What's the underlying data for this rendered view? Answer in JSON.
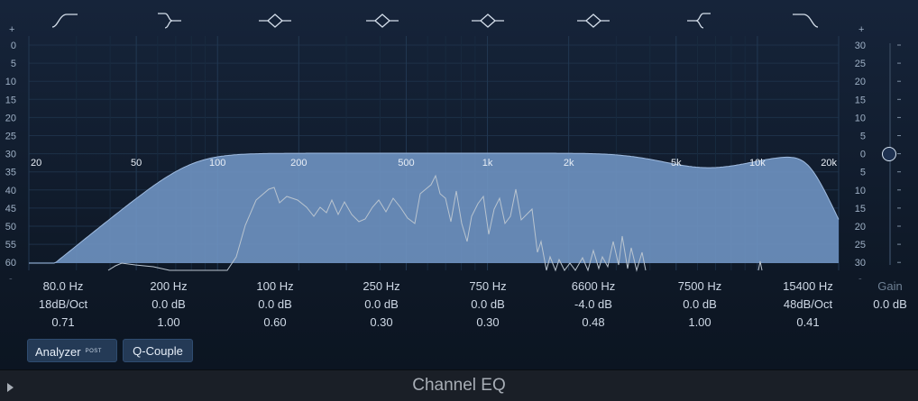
{
  "window": {
    "title": "Channel EQ"
  },
  "scale": {
    "left_top_marker": "+",
    "left_bottom_marker": "-",
    "left_labels": [
      "0",
      "5",
      "10",
      "15",
      "20",
      "25",
      "30",
      "35",
      "40",
      "45",
      "50",
      "55",
      "60"
    ],
    "right_top_marker": "+",
    "right_bottom_marker": "-",
    "right_labels": [
      "30",
      "25",
      "20",
      "15",
      "10",
      "5",
      "0",
      "5",
      "10",
      "15",
      "20",
      "25",
      "30"
    ]
  },
  "freq_labels": [
    "20",
    "50",
    "100",
    "200",
    "500",
    "1k",
    "2k",
    "5k",
    "10k",
    "20k"
  ],
  "bands": [
    {
      "icon": "low-cut-icon",
      "freq": "80.0 Hz",
      "gain": "18dB/Oct",
      "q": "0.71"
    },
    {
      "icon": "low-shelf-icon",
      "freq": "200 Hz",
      "gain": "0.0 dB",
      "q": "1.00"
    },
    {
      "icon": "bell-icon",
      "freq": "100 Hz",
      "gain": "0.0 dB",
      "q": "0.60"
    },
    {
      "icon": "bell-icon",
      "freq": "250 Hz",
      "gain": "0.0 dB",
      "q": "0.30"
    },
    {
      "icon": "bell-icon",
      "freq": "750 Hz",
      "gain": "0.0 dB",
      "q": "0.30"
    },
    {
      "icon": "bell-icon",
      "freq": "6600 Hz",
      "gain": "-4.0 dB",
      "q": "0.48"
    },
    {
      "icon": "high-shelf-icon",
      "freq": "7500 Hz",
      "gain": "0.0 dB",
      "q": "1.00"
    },
    {
      "icon": "high-cut-icon",
      "freq": "15400 Hz",
      "gain": "48dB/Oct",
      "q": "0.41"
    }
  ],
  "output": {
    "label": "Gain",
    "value": "0.0 dB",
    "slider_db": 0
  },
  "buttons": {
    "analyzer": "Analyzer",
    "analyzer_badge": "POST",
    "q_couple": "Q-Couple"
  },
  "colors": {
    "curve_fill": "#6f93c2",
    "background": "#0f1a27",
    "analyzer_line": "#b9c4cf"
  }
}
